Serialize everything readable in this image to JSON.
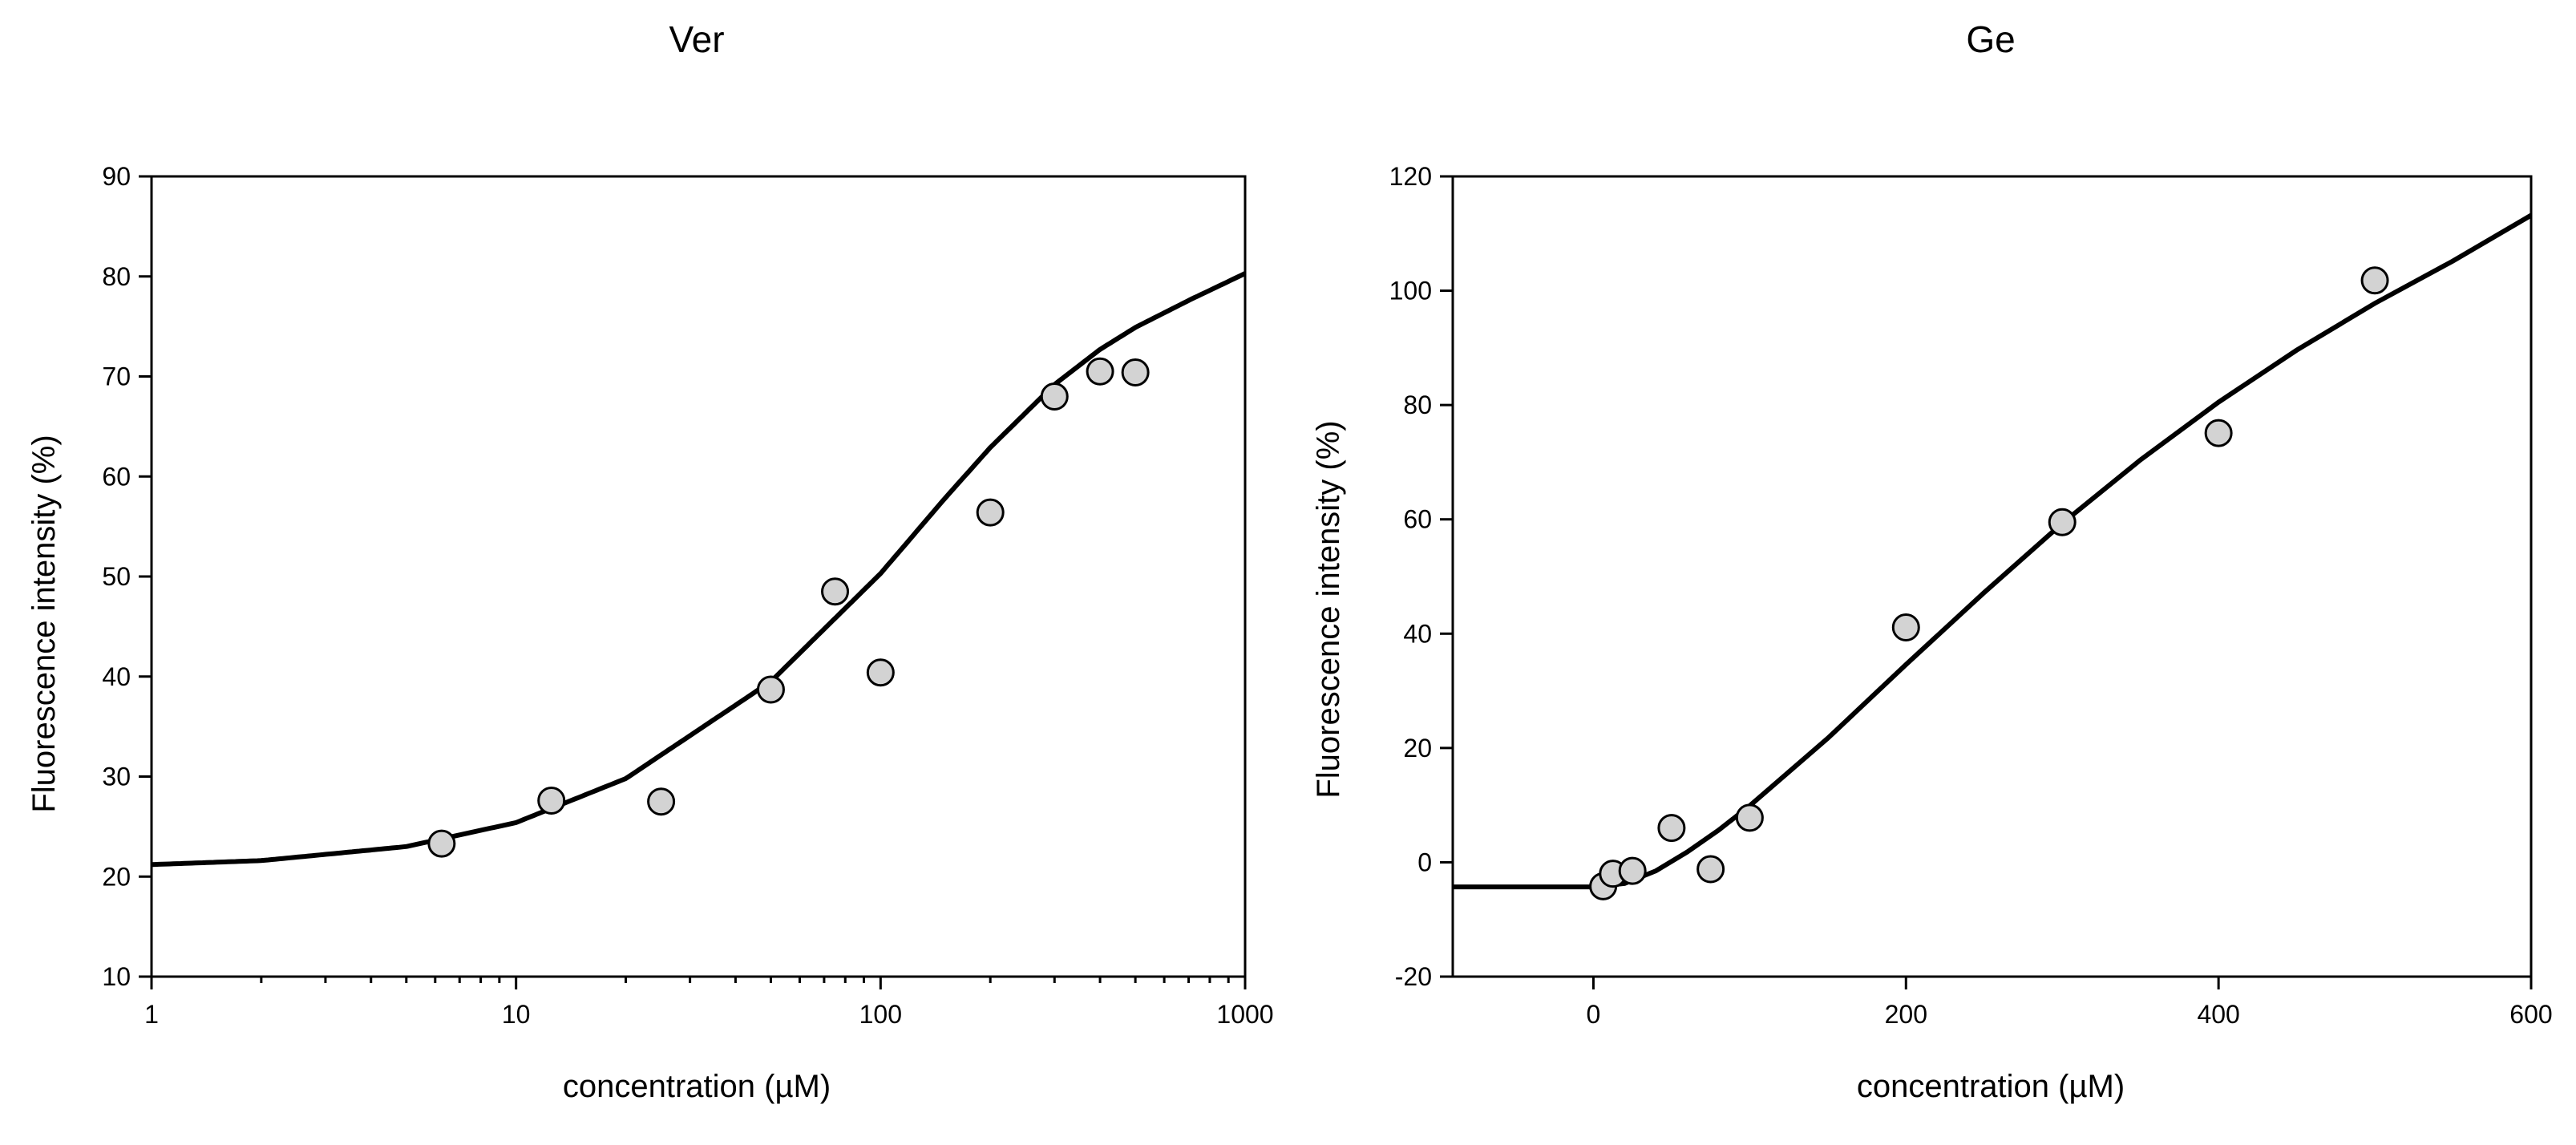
{
  "chart_data": [
    {
      "type": "scatter",
      "title": "Ver",
      "xlabel": "concentration (µM)",
      "ylabel": "Fluorescence intensity (%)",
      "xscale": "log",
      "xlim": [
        1,
        1000
      ],
      "ylim": [
        10,
        90
      ],
      "xticks": [
        1,
        10,
        100,
        1000
      ],
      "xtick_labels": [
        "1",
        "10",
        "100",
        "1000"
      ],
      "yticks": [
        10,
        20,
        30,
        40,
        50,
        60,
        70,
        80,
        90
      ],
      "ytick_labels": [
        "10",
        "20",
        "30",
        "40",
        "50",
        "60",
        "70",
        "80",
        "90"
      ],
      "grid": false,
      "legend": "none",
      "marker_color": "#d3d3d3",
      "line_color": "#000000",
      "series": [
        {
          "x": [
            6.25,
            12.5,
            25,
            50,
            75,
            100,
            200,
            300,
            400,
            500
          ],
          "y": [
            23.3,
            27.6,
            27.5,
            38.7,
            48.5,
            40.4,
            56.4,
            68.0,
            70.5,
            70.4
          ]
        }
      ],
      "fit_curve": {
        "x": [
          1,
          2,
          5,
          10,
          20,
          50,
          100,
          150,
          200,
          300,
          400,
          500,
          700,
          1000
        ],
        "y": [
          21.2,
          21.6,
          23.0,
          25.4,
          29.8,
          39.5,
          50.3,
          57.8,
          62.9,
          69.2,
          72.7,
          74.9,
          77.6,
          80.3
        ]
      }
    },
    {
      "type": "scatter",
      "title": "Ge",
      "xlabel": "concentration (µM)",
      "ylabel": "Fluorescence intensity (%)",
      "xscale": "linear",
      "xlim": [
        -90,
        600
      ],
      "ylim": [
        -20,
        120
      ],
      "xticks": [
        0,
        200,
        400,
        600
      ],
      "xtick_labels": [
        "0",
        "200",
        "400",
        "600"
      ],
      "yticks": [
        -20,
        0,
        20,
        40,
        60,
        80,
        100,
        120
      ],
      "ytick_labels": [
        "-20",
        "0",
        "20",
        "40",
        "60",
        "80",
        "100",
        "120"
      ],
      "grid": false,
      "legend": "none",
      "marker_color": "#d3d3d3",
      "line_color": "#000000",
      "series": [
        {
          "x": [
            6.25,
            12.5,
            25,
            50,
            75,
            100,
            200,
            300,
            400,
            500
          ],
          "y": [
            -4.2,
            -2.0,
            -1.5,
            6.0,
            -1.2,
            7.8,
            41.1,
            59.5,
            75.1,
            101.8
          ]
        }
      ],
      "fit_curve": {
        "x": [
          -90,
          0,
          20,
          40,
          60,
          80,
          100,
          150,
          200,
          250,
          300,
          350,
          400,
          450,
          500,
          550,
          600
        ],
        "y": [
          -4.3,
          -4.3,
          -3.7,
          -1.5,
          1.8,
          5.6,
          9.9,
          21.7,
          34.6,
          47.2,
          59.3,
          70.4,
          80.5,
          89.6,
          97.8,
          105.2,
          113.2
        ]
      }
    }
  ]
}
